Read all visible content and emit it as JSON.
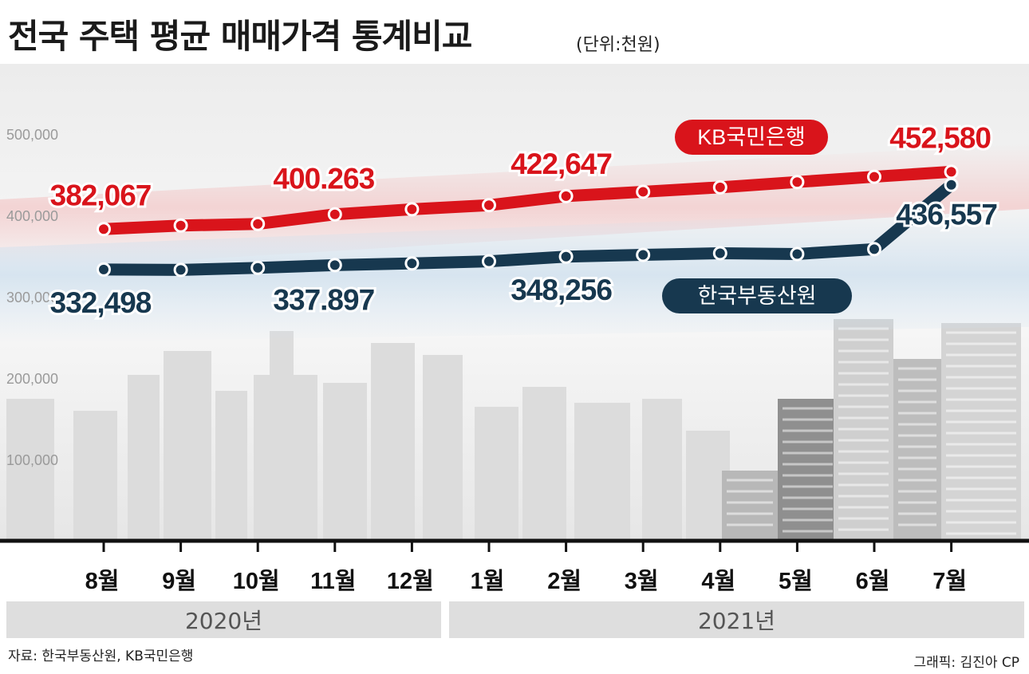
{
  "title": "전국 주택 평균 매매가격 통계비교",
  "unit": "(단위:천원)",
  "source": "자료: 한국부동산원, KB국민은행",
  "credit": "그래픽: 김진아 CP",
  "years": [
    "2020년",
    "2021년"
  ],
  "colors": {
    "kb": "#d9141b",
    "reb": "#17384f"
  },
  "chart_data": {
    "type": "line",
    "categories": [
      "8월",
      "9월",
      "10월",
      "11월",
      "12월",
      "1월",
      "2월",
      "3월",
      "4월",
      "5월",
      "6월",
      "7월"
    ],
    "yticks": [
      "500,000",
      "400,000",
      "300,000",
      "200,000",
      "100,000"
    ],
    "ylim": [
      0,
      500000
    ],
    "series": [
      {
        "name": "KB국민은행",
        "values": [
          382067,
          386500,
          388500,
          400263,
          406500,
          411500,
          422647,
          428000,
          433500,
          440000,
          446500,
          452580
        ],
        "labels": [
          {
            "index": 0,
            "text": "382,067"
          },
          {
            "index": 3,
            "text": "400.263"
          },
          {
            "index": 6,
            "text": "422,647"
          },
          {
            "index": 11,
            "text": "452,580"
          }
        ]
      },
      {
        "name": "한국부동산원",
        "values": [
          332498,
          332000,
          334500,
          337897,
          340000,
          342500,
          348256,
          350500,
          352500,
          351500,
          357500,
          436557
        ],
        "labels": [
          {
            "index": 0,
            "text": "332,498"
          },
          {
            "index": 3,
            "text": "337.897"
          },
          {
            "index": 6,
            "text": "348,256"
          },
          {
            "index": 11,
            "text": "436,557"
          }
        ]
      }
    ]
  }
}
